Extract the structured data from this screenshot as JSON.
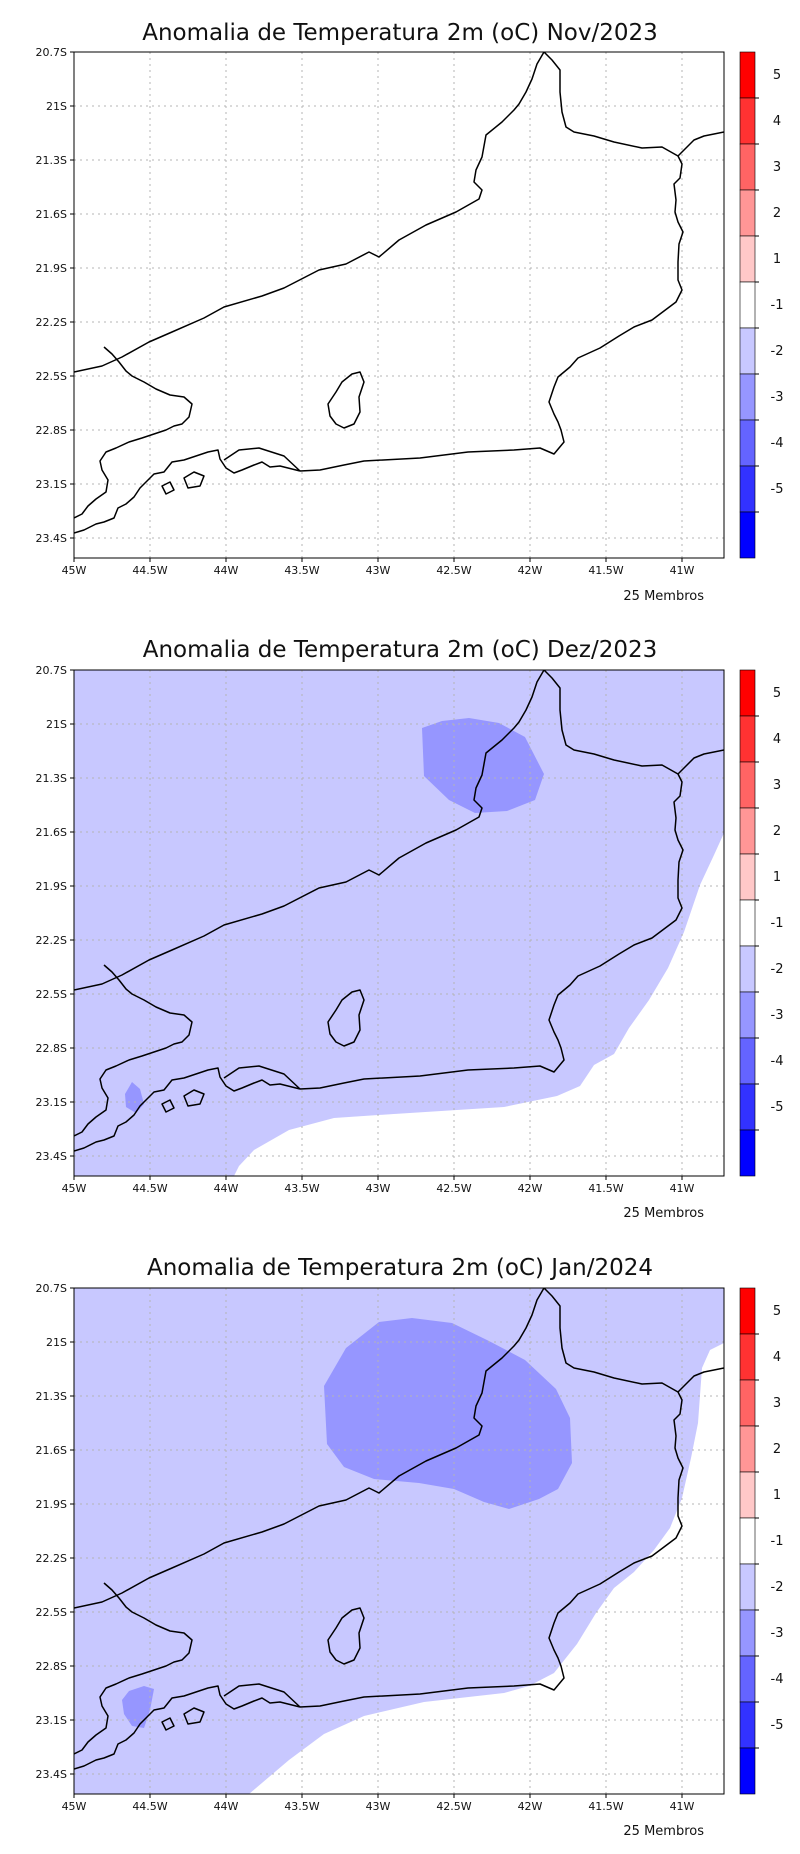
{
  "panels": [
    {
      "title": "Anomalia de Temperatura 2m (oC) Nov/2023",
      "footer": "25 Membros",
      "coverage": {
        "level_minus1_to_minus2": "none",
        "level_minus2_to_minus3": "none"
      }
    },
    {
      "title": "Anomalia de Temperatura 2m (oC) Dez/2023",
      "footer": "25 Membros",
      "coverage": {
        "level_minus1_to_minus2": "most of domain",
        "level_minus2_to_minus3": "around 21.3S 42.2W"
      }
    },
    {
      "title": "Anomalia de Temperatura 2m (oC) Jan/2024",
      "footer": "25 Membros",
      "coverage": {
        "level_minus1_to_minus2": "most of domain",
        "level_minus2_to_minus3": "around 21.5S 42.5W"
      }
    }
  ],
  "axes": {
    "lat_labels": [
      "20.7S",
      "21S",
      "21.3S",
      "21.6S",
      "21.9S",
      "22.2S",
      "22.5S",
      "22.8S",
      "23.1S",
      "23.4S"
    ],
    "lon_labels": [
      "45W",
      "44.5W",
      "44W",
      "43.5W",
      "43W",
      "42.5W",
      "42W",
      "41.5W",
      "41W"
    ]
  },
  "colorbar": {
    "labels": [
      "5",
      "4",
      "3",
      "2",
      "1",
      "-1",
      "-2",
      "-3",
      "-4",
      "-5"
    ],
    "colors": [
      "#ff0000",
      "#ff3232",
      "#ff6464",
      "#ff9696",
      "#ffc8c8",
      "#ffffff",
      "#c8c8ff",
      "#9696ff",
      "#6464ff",
      "#3232ff",
      "#0000ff"
    ]
  },
  "style": {
    "shade_level_1": "#c8c8ff",
    "shade_level_2": "#9696ff",
    "coastline_color": "#000000",
    "grid_color": "#b4b4b4"
  }
}
